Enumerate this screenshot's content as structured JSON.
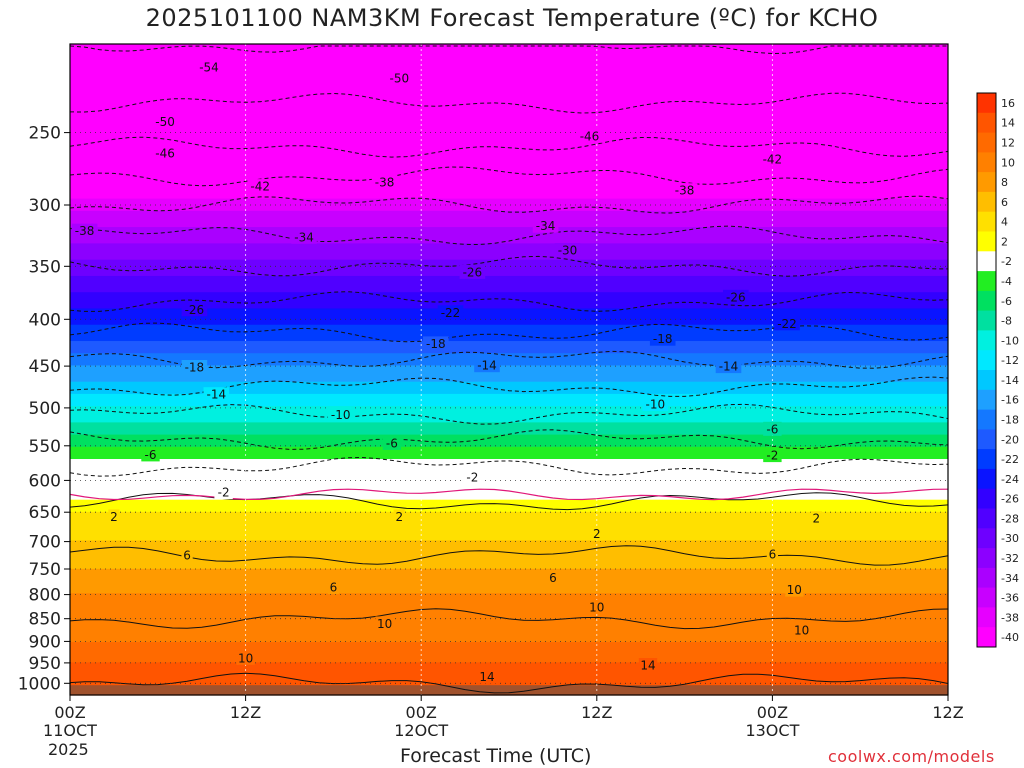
{
  "title": "2025101100 NAM3KM Forecast Temperature (ºC) for KCHO",
  "xlabel": "Forecast Time (UTC)",
  "watermark": "coolwx.com/models",
  "year": "2025",
  "colors": {
    "terrain": "#a0522d",
    "freezing_line": "#e0187a",
    "watermark": "#e0303a"
  },
  "chart_data": {
    "type": "heatmap",
    "title": "2025101100 NAM3KM Forecast Temperature (ºC) for KCHO",
    "xlabel": "Forecast Time (UTC)",
    "ylabel": "",
    "x_ticks": [
      {
        "hour": 0,
        "time": "00Z",
        "date": "11OCT"
      },
      {
        "hour": 12,
        "time": "12Z",
        "date": ""
      },
      {
        "hour": 24,
        "time": "00Z",
        "date": "12OCT"
      },
      {
        "hour": 36,
        "time": "12Z",
        "date": ""
      },
      {
        "hour": 48,
        "time": "00Z",
        "date": "13OCT"
      },
      {
        "hour": 60,
        "time": "12Z",
        "date": ""
      }
    ],
    "xlim": [
      0,
      60
    ],
    "y_ticks": [
      250,
      300,
      350,
      400,
      450,
      500,
      550,
      600,
      650,
      700,
      750,
      800,
      850,
      900,
      950,
      1000
    ],
    "ylim": [
      1030,
      200
    ],
    "y_scale": "log",
    "grid": true,
    "colorbar": {
      "labels": [
        16,
        14,
        12,
        10,
        8,
        6,
        4,
        2,
        -2,
        -4,
        -6,
        -8,
        -10,
        -12,
        -14,
        -16,
        -18,
        -20,
        -22,
        -24,
        -26,
        -28,
        -30,
        -32,
        -34,
        -36,
        -38,
        -40
      ],
      "colors": [
        "#ff3300",
        "#ff5500",
        "#ff6a00",
        "#ff8000",
        "#ff9a00",
        "#ffbe00",
        "#ffe000",
        "#ffff00",
        "#ffffff",
        "#22ee22",
        "#00e060",
        "#00e0a0",
        "#00f0e0",
        "#00e8ff",
        "#00c8ff",
        "#1ea0ff",
        "#1478ff",
        "#1e5aff",
        "#003cff",
        "#0a14ff",
        "#3200ff",
        "#5000ff",
        "#6e00ff",
        "#8c00ff",
        "#aa00ff",
        "#c800ff",
        "#e600ff",
        "#ff00ff"
      ]
    },
    "temperature_profile": {
      "levels": [
        200,
        250,
        300,
        350,
        400,
        450,
        500,
        550,
        600,
        650,
        700,
        750,
        800,
        850,
        900,
        950,
        1000
      ],
      "temps_c": [
        -54,
        -48,
        -38,
        -30,
        -24,
        -17,
        -11,
        -5,
        0,
        3,
        5,
        7,
        9,
        10,
        11,
        13,
        14
      ]
    },
    "contour_labels": [
      {
        "value": -54,
        "hour": 9.5,
        "level": 212
      },
      {
        "value": -50,
        "hour": 22.5,
        "level": 218
      },
      {
        "value": -50,
        "hour": 6.5,
        "level": 243
      },
      {
        "value": -46,
        "hour": 6.5,
        "level": 263
      },
      {
        "value": -46,
        "hour": 35.5,
        "level": 252
      },
      {
        "value": -42,
        "hour": 13,
        "level": 286
      },
      {
        "value": -42,
        "hour": 48,
        "level": 267
      },
      {
        "value": -38,
        "hour": 21.5,
        "level": 283
      },
      {
        "value": -38,
        "hour": 42,
        "level": 289
      },
      {
        "value": -38,
        "hour": 1,
        "level": 320
      },
      {
        "value": -34,
        "hour": 16,
        "level": 325
      },
      {
        "value": -34,
        "hour": 32.5,
        "level": 316
      },
      {
        "value": -30,
        "hour": 34,
        "level": 336
      },
      {
        "value": -26,
        "hour": 27.5,
        "level": 355
      },
      {
        "value": -26,
        "hour": 45.5,
        "level": 378
      },
      {
        "value": -26,
        "hour": 8.5,
        "level": 390
      },
      {
        "value": -22,
        "hour": 26,
        "level": 393
      },
      {
        "value": -22,
        "hour": 49,
        "level": 404
      },
      {
        "value": -18,
        "hour": 25,
        "level": 425
      },
      {
        "value": -18,
        "hour": 40.5,
        "level": 420
      },
      {
        "value": -18,
        "hour": 8.5,
        "level": 451
      },
      {
        "value": -14,
        "hour": 28.5,
        "level": 449
      },
      {
        "value": -14,
        "hour": 45,
        "level": 450
      },
      {
        "value": -14,
        "hour": 10,
        "level": 483
      },
      {
        "value": -10,
        "hour": 18.5,
        "level": 508
      },
      {
        "value": -10,
        "hour": 40,
        "level": 495
      },
      {
        "value": -6,
        "hour": 22,
        "level": 546
      },
      {
        "value": -6,
        "hour": 48,
        "level": 527
      },
      {
        "value": -6,
        "hour": 5.5,
        "level": 562
      },
      {
        "value": -2,
        "hour": 27.5,
        "level": 595
      },
      {
        "value": -2,
        "hour": 48,
        "level": 563
      },
      {
        "value": -2,
        "hour": 10.5,
        "level": 618
      },
      {
        "value": 2,
        "hour": 3,
        "level": 657
      },
      {
        "value": 2,
        "hour": 22.5,
        "level": 657
      },
      {
        "value": 2,
        "hour": 36,
        "level": 686
      },
      {
        "value": 2,
        "hour": 51,
        "level": 660
      },
      {
        "value": 6,
        "hour": 8,
        "level": 724
      },
      {
        "value": 6,
        "hour": 18,
        "level": 785
      },
      {
        "value": 6,
        "hour": 33,
        "level": 766
      },
      {
        "value": 6,
        "hour": 48,
        "level": 722
      },
      {
        "value": 10,
        "hour": 21.5,
        "level": 860
      },
      {
        "value": 10,
        "hour": 36,
        "level": 825
      },
      {
        "value": 10,
        "hour": 49.5,
        "level": 790
      },
      {
        "value": 10,
        "hour": 50,
        "level": 875
      },
      {
        "value": 10,
        "hour": 12,
        "level": 938
      },
      {
        "value": 14,
        "hour": 28.5,
        "level": 983
      },
      {
        "value": 14,
        "hour": 39.5,
        "level": 955
      }
    ]
  }
}
